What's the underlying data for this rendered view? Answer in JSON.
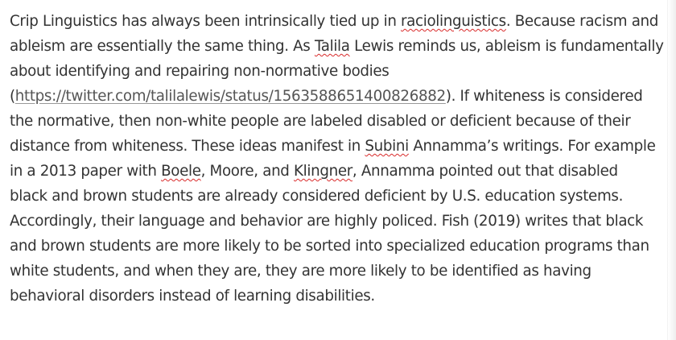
{
  "document": {
    "lines": [
      [
        {
          "text": "Crip Linguistics has always been intrinsically tied up in "
        },
        {
          "text": "raciolinguistics",
          "spell": true
        },
        {
          "text": ". Because racism and"
        }
      ],
      [
        {
          "text": "ableism are essentially the same thing. As "
        },
        {
          "text": "Talila",
          "spell": true
        },
        {
          "text": " Lewis reminds us, ableism is fundamentally"
        }
      ],
      [
        {
          "text": "about identifying and repairing non-normative bodies"
        }
      ],
      [
        {
          "text": "("
        },
        {
          "text": "https://twitter.com/talilalewis/status/1563588651400826882",
          "link": true
        },
        {
          "text": "). If whiteness is considered"
        }
      ],
      [
        {
          "text": "the normative, then non-white people are labeled disabled or deficient because of their"
        }
      ],
      [
        {
          "text": "distance from whiteness. These ideas manifest in "
        },
        {
          "text": "Subini",
          "spell": true
        },
        {
          "text": " Annamma’s writings. For example"
        }
      ],
      [
        {
          "text": "in a 2013 paper with "
        },
        {
          "text": "Boele",
          "spell": true
        },
        {
          "text": ", Moore, and "
        },
        {
          "text": "Klingner",
          "spell": true
        },
        {
          "text": ", Annamma pointed out that disabled"
        }
      ],
      [
        {
          "text": "black and brown students are already considered deficient by U.S. education systems."
        }
      ],
      [
        {
          "text": "Accordingly, their language and behavior are highly policed. Fish (2019) writes that black"
        }
      ],
      [
        {
          "text": "and brown students are more likely to be sorted into specialized education programs than"
        }
      ],
      [
        {
          "text": "white students, and when they are, they are more likely to be identified as having"
        }
      ],
      [
        {
          "text": "behavioral disorders instead of learning disabilities."
        }
      ]
    ]
  }
}
